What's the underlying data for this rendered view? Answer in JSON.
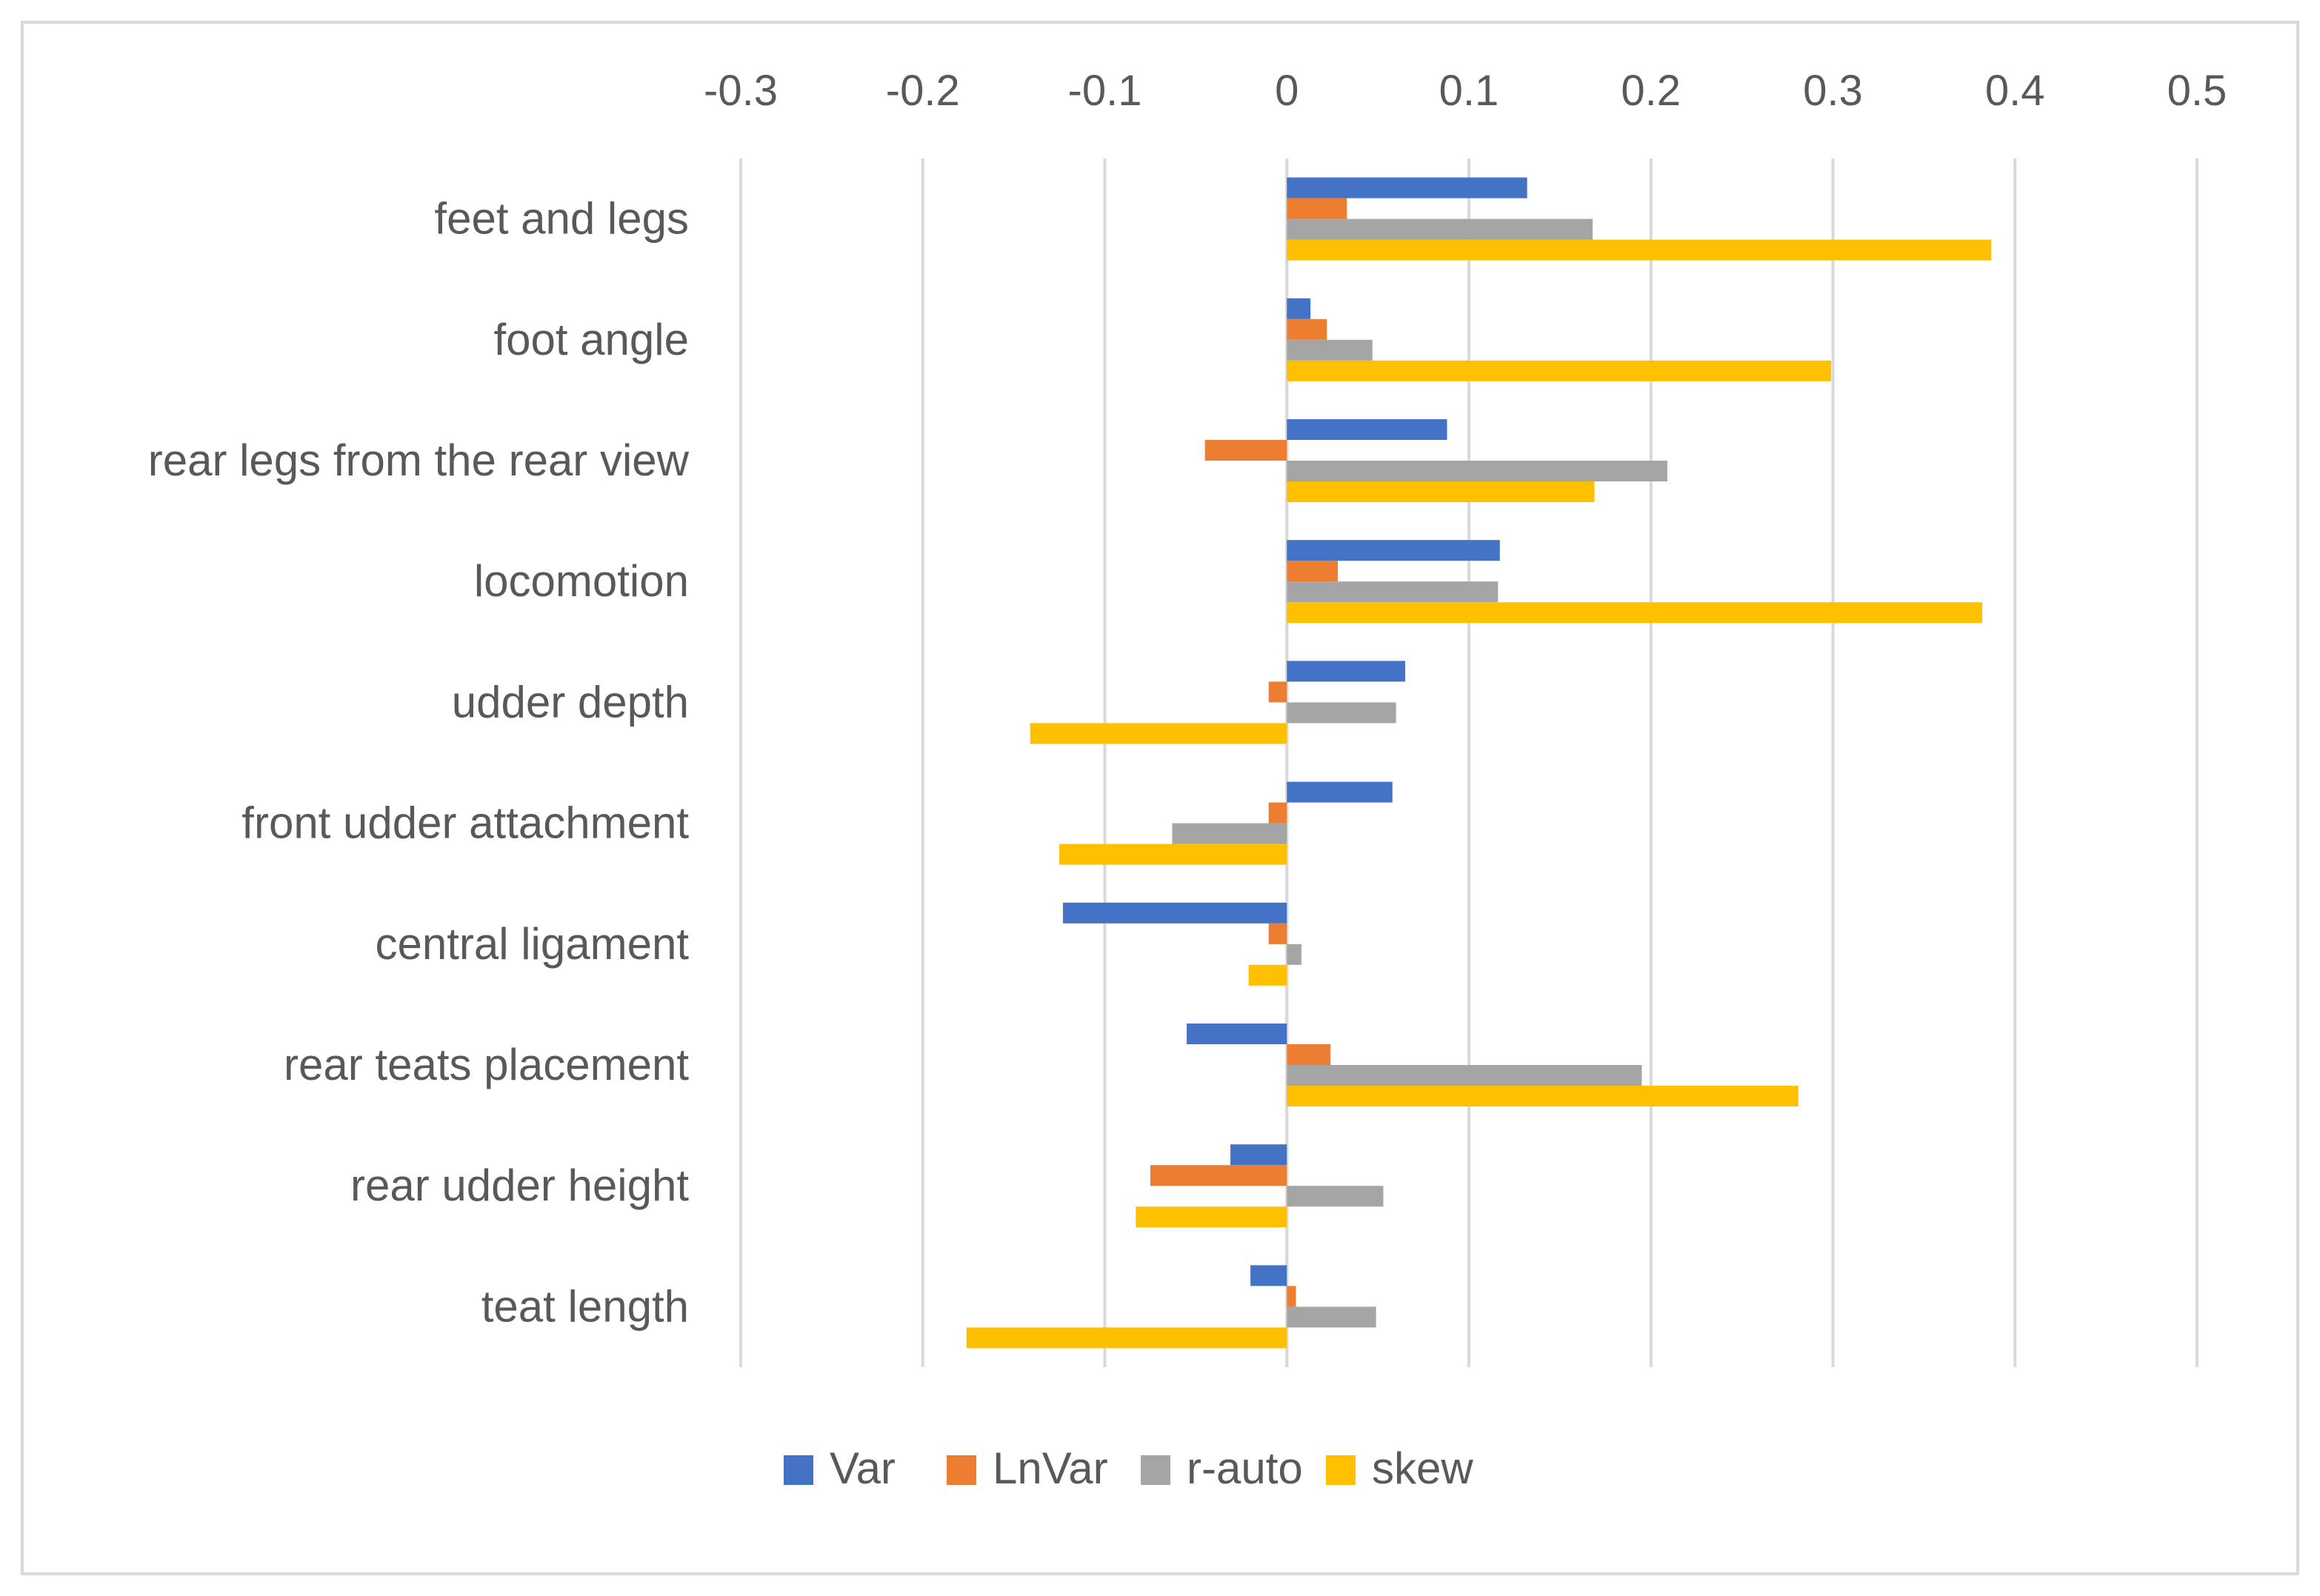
{
  "chart_data": {
    "type": "bar",
    "orientation": "horizontal",
    "title": "",
    "xlabel": "",
    "ylabel": "",
    "xlim": [
      -0.3,
      0.5
    ],
    "ticks": [
      -0.3,
      -0.2,
      -0.1,
      0,
      0.1,
      0.2,
      0.3,
      0.4,
      0.5
    ],
    "tick_labels": [
      "-0.3",
      "-0.2",
      "-0.1",
      "0",
      "0.1",
      "0.2",
      "0.3",
      "0.4",
      "0.5"
    ],
    "axis_position": "top",
    "grid": true,
    "legend_position": "bottom",
    "categories": [
      "feet and legs",
      "foot angle",
      "rear legs from the rear view",
      "locomotion",
      "udder depth",
      "front udder attachment",
      "central ligament",
      "rear teats placement",
      "rear udder height",
      "teat length"
    ],
    "series": [
      {
        "name": "Var",
        "color": "#4472c4",
        "values": [
          0.132,
          0.013,
          0.088,
          0.117,
          0.065,
          0.058,
          -0.123,
          -0.055,
          -0.031,
          -0.02
        ]
      },
      {
        "name": "LnVar",
        "color": "#ed7d31",
        "values": [
          0.033,
          0.022,
          -0.045,
          0.028,
          -0.01,
          -0.01,
          -0.01,
          0.024,
          -0.075,
          0.005
        ]
      },
      {
        "name": "r-auto",
        "color": "#a5a5a5",
        "values": [
          0.168,
          0.047,
          0.209,
          0.116,
          0.06,
          -0.063,
          0.008,
          0.195,
          0.053,
          0.049
        ]
      },
      {
        "name": "skew",
        "color": "#ffc000",
        "values": [
          0.387,
          0.299,
          0.169,
          0.382,
          -0.141,
          -0.125,
          -0.021,
          0.281,
          -0.083,
          -0.176
        ]
      }
    ]
  }
}
